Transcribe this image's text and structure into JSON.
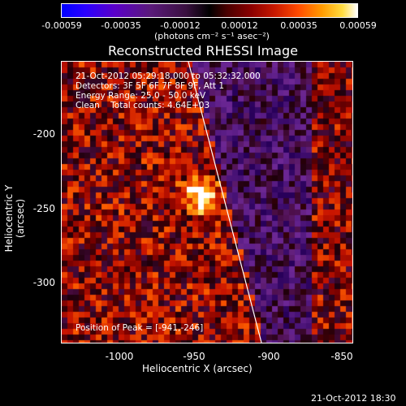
{
  "colorbar": {
    "ticks": [
      "-0.00059",
      "-0.00035",
      "-0.00012",
      "0.00012",
      "0.00035",
      "0.00059"
    ],
    "units": "(photons cm⁻² s⁻¹ asec⁻²)"
  },
  "title": "Reconstructed RHESSI Image",
  "info": {
    "time": "21-Oct-2012 05:29:18.000 to 05:32:32.000",
    "detectors": "Detectors: 3F 5F 6F 7F 8F 9F, Att 1",
    "energy": "Energy Range: 25.0 - 50.0 keV",
    "clean": "Clean    Total counts: 4.64E+03",
    "peak": "Position of Peak = [-941,-246]"
  },
  "axes": {
    "xlabel": "Heliocentric X (arcsec)",
    "ylabel": "Heliocentric Y (arcsec)",
    "xticks": [
      "-1000",
      "-950",
      "-900",
      "-850"
    ],
    "yticks": [
      "-200",
      "-250",
      "-300"
    ]
  },
  "timestamp": "21-Oct-2012 18:30"
}
